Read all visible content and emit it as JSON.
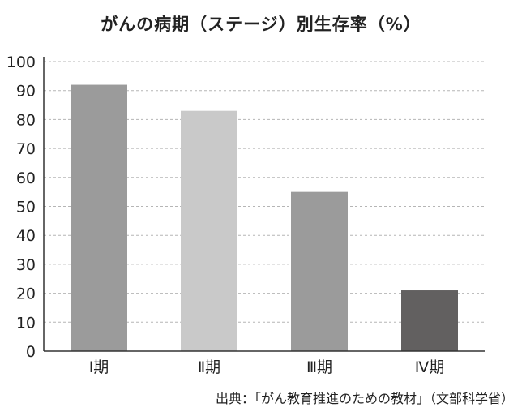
{
  "chart_data": {
    "type": "bar",
    "title": "がんの病期（ステージ）別生存率（%）",
    "categories": [
      "Ⅰ期",
      "Ⅱ期",
      "Ⅲ期",
      "Ⅳ期"
    ],
    "values": [
      92,
      83,
      55,
      21
    ],
    "bar_colors": [
      "#9b9b9b",
      "#c9c9c9",
      "#9b9b9b",
      "#626060"
    ],
    "ylim": [
      0,
      100
    ],
    "yticks": [
      "0",
      "10",
      "20",
      "30",
      "40",
      "50",
      "60",
      "70",
      "80",
      "90",
      "100"
    ],
    "grid": "horizontal-dashed",
    "source": "出典：「がん教育推進のための教材」（文部科学省）"
  }
}
